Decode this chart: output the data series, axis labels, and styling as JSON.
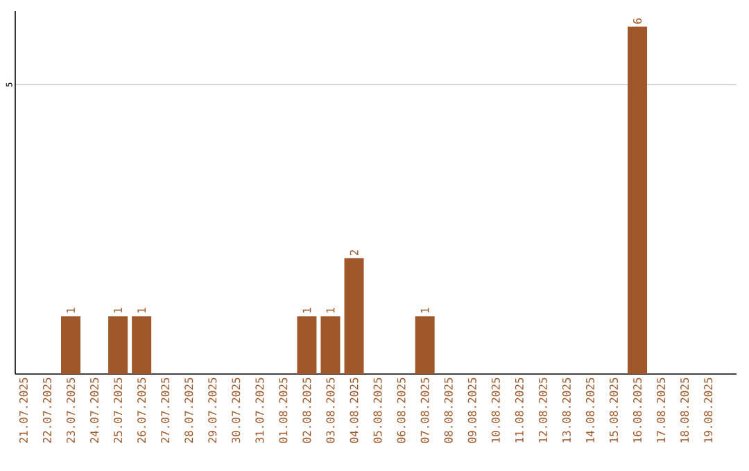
{
  "chart_data": {
    "type": "bar",
    "categories": [
      "21.07.2025",
      "22.07.2025",
      "23.07.2025",
      "24.07.2025",
      "25.07.2025",
      "26.07.2025",
      "27.07.2025",
      "28.07.2025",
      "29.07.2025",
      "30.07.2025",
      "31.07.2025",
      "01.08.2025",
      "02.08.2025",
      "03.08.2025",
      "04.08.2025",
      "05.08.2025",
      "06.08.2025",
      "07.08.2025",
      "08.08.2025",
      "09.08.2025",
      "10.08.2025",
      "11.08.2025",
      "12.08.2025",
      "13.08.2025",
      "14.08.2025",
      "15.08.2025",
      "16.08.2025",
      "17.08.2025",
      "18.08.2025",
      "19.08.2025"
    ],
    "values": [
      0,
      0,
      1,
      0,
      1,
      1,
      0,
      0,
      0,
      0,
      0,
      0,
      1,
      1,
      2,
      0,
      0,
      1,
      0,
      0,
      0,
      0,
      0,
      0,
      0,
      0,
      6,
      0,
      0,
      0
    ],
    "value_labels": [
      null,
      null,
      "1",
      null,
      "1",
      "1",
      null,
      null,
      null,
      null,
      null,
      null,
      "1",
      "1",
      "2",
      null,
      null,
      "1",
      null,
      null,
      null,
      null,
      null,
      null,
      null,
      null,
      "6",
      null,
      null,
      null
    ],
    "color": "#a0582a",
    "ylim": [
      0,
      6.27
    ],
    "yticks": [
      5
    ],
    "grid": "y"
  }
}
